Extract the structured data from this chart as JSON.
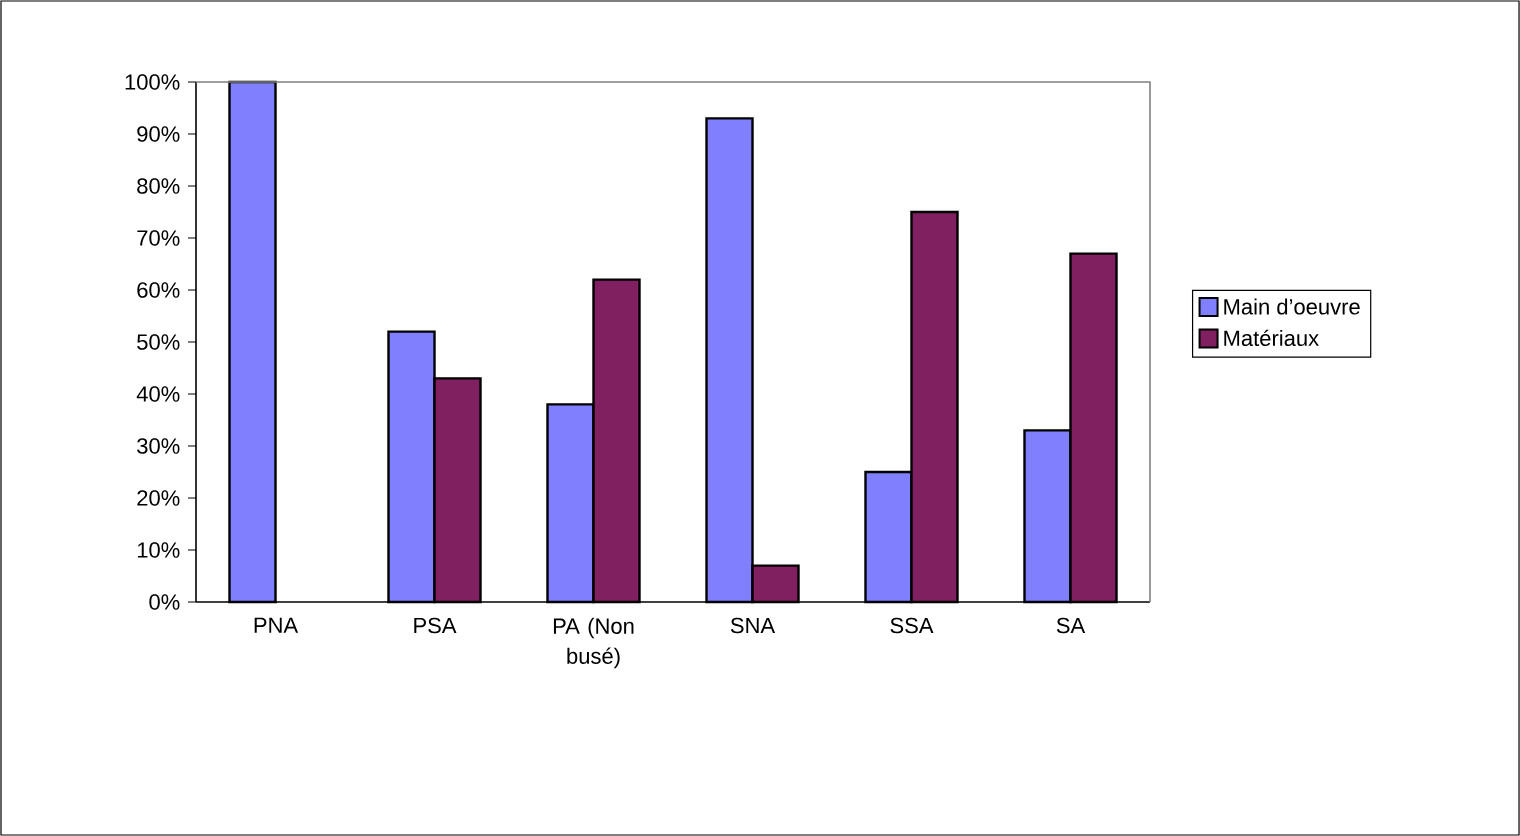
{
  "chart_data": {
    "type": "bar",
    "categories": [
      "PNA",
      "PSA",
      "PA (Non busé)",
      "SNA",
      "SSA",
      "SA"
    ],
    "series": [
      {
        "name": "Main d’oeuvre",
        "color": "#8080ff",
        "values": [
          100,
          52,
          38,
          93,
          25,
          33
        ]
      },
      {
        "name": "Matériaux",
        "color": "#802060",
        "values": [
          null,
          43,
          62,
          7,
          75,
          67
        ]
      }
    ],
    "ylim": [
      0,
      100
    ],
    "yticks": [
      {
        "value": 0,
        "label": "0%"
      },
      {
        "value": 10,
        "label": "10%"
      },
      {
        "value": 20,
        "label": "20%"
      },
      {
        "value": 30,
        "label": "30%"
      },
      {
        "value": 40,
        "label": "40%"
      },
      {
        "value": 50,
        "label": "50%"
      },
      {
        "value": 60,
        "label": "60%"
      },
      {
        "value": 70,
        "label": "70%"
      },
      {
        "value": 80,
        "label": "80%"
      },
      {
        "value": 90,
        "label": "90%"
      },
      {
        "value": 100,
        "label": "100%"
      }
    ],
    "grid": false,
    "legend": "right"
  }
}
